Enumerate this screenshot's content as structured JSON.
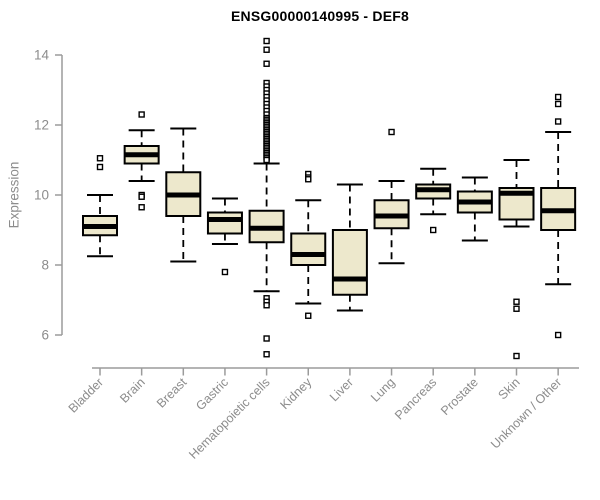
{
  "page": {
    "title": "ENSG00000140995 - DEF8"
  },
  "chart_data": {
    "type": "box",
    "title": "ENSG00000140995 - DEF8",
    "xlabel": "",
    "ylabel": "Expression",
    "ylim": [
      6,
      14
    ],
    "y_ticks": [
      6,
      8,
      10,
      12,
      14
    ],
    "grid": false,
    "legend": "none",
    "colors": {
      "box_fill": "#ede8cc",
      "box_border": "#000000",
      "median": "#000000",
      "whisker": "#000000",
      "outlier_fill": "#ffffff",
      "outlier_border": "#000000",
      "axis_line": "#9b9b9b",
      "tick_text": "#8c8c8c",
      "title_text": "#000000"
    },
    "categories": [
      "Bladder",
      "Brain",
      "Breast",
      "Gastric",
      "Hematopoietic cells",
      "Kidney",
      "Liver",
      "Lung",
      "Pancreas",
      "Prostate",
      "Skin",
      "Unknown / Other"
    ],
    "series": [
      {
        "name": "Bladder",
        "low": 8.25,
        "q1": 8.85,
        "median": 9.1,
        "q3": 9.4,
        "high": 10.0,
        "outliers": [
          11.05,
          10.8
        ]
      },
      {
        "name": "Brain",
        "low": 10.4,
        "q1": 10.9,
        "median": 11.15,
        "q3": 11.4,
        "high": 11.85,
        "outliers": [
          12.3,
          10.0,
          9.95,
          9.65
        ]
      },
      {
        "name": "Breast",
        "low": 8.1,
        "q1": 9.4,
        "median": 10.0,
        "q3": 10.65,
        "high": 11.9,
        "outliers": []
      },
      {
        "name": "Gastric",
        "low": 8.6,
        "q1": 8.9,
        "median": 9.3,
        "q3": 9.5,
        "high": 9.9,
        "outliers": [
          7.8
        ]
      },
      {
        "name": "Hematopoietic cells",
        "low": 7.25,
        "q1": 8.65,
        "median": 9.05,
        "q3": 9.55,
        "high": 10.9,
        "outliers": [
          14.4,
          14.15,
          13.75,
          13.2,
          13.1,
          13.0,
          12.9,
          12.8,
          12.7,
          12.6,
          12.5,
          12.4,
          12.3,
          12.2,
          12.15,
          12.1,
          12.05,
          12.0,
          11.95,
          11.9,
          11.85,
          11.8,
          11.75,
          11.7,
          11.65,
          11.6,
          11.55,
          11.5,
          11.45,
          11.4,
          11.35,
          11.3,
          11.25,
          11.2,
          11.15,
          11.1,
          11.05,
          11.0,
          7.05,
          6.95,
          6.85,
          5.9,
          5.45
        ]
      },
      {
        "name": "Kidney",
        "low": 6.9,
        "q1": 8.0,
        "median": 8.3,
        "q3": 8.9,
        "high": 9.85,
        "outliers": [
          10.6,
          10.5,
          10.45,
          6.55
        ]
      },
      {
        "name": "Liver",
        "low": 6.7,
        "q1": 7.15,
        "median": 7.6,
        "q3": 9.0,
        "high": 10.3,
        "outliers": []
      },
      {
        "name": "Lung",
        "low": 8.05,
        "q1": 9.05,
        "median": 9.4,
        "q3": 9.85,
        "high": 10.4,
        "outliers": [
          11.8
        ]
      },
      {
        "name": "Pancreas",
        "low": 9.45,
        "q1": 9.9,
        "median": 10.15,
        "q3": 10.3,
        "high": 10.75,
        "outliers": [
          9.0
        ]
      },
      {
        "name": "Prostate",
        "low": 8.7,
        "q1": 9.5,
        "median": 9.8,
        "q3": 10.1,
        "high": 10.5,
        "outliers": []
      },
      {
        "name": "Skin",
        "low": 9.1,
        "q1": 9.3,
        "median": 10.05,
        "q3": 10.2,
        "high": 11.0,
        "outliers": [
          6.95,
          6.75,
          5.4
        ]
      },
      {
        "name": "Unknown / Other",
        "low": 7.45,
        "q1": 9.0,
        "median": 9.55,
        "q3": 10.2,
        "high": 11.8,
        "outliers": [
          12.8,
          12.6,
          12.1,
          6.0
        ]
      }
    ]
  }
}
